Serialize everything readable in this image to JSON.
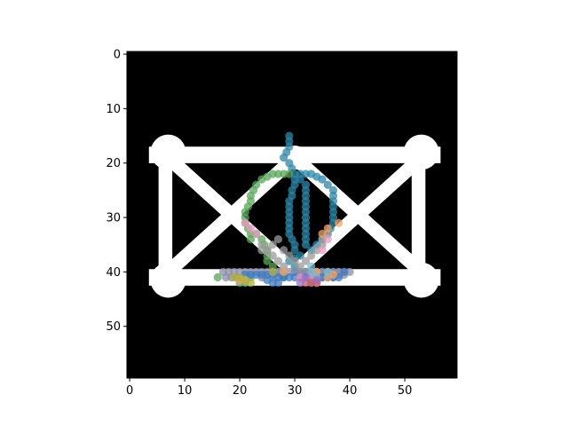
{
  "chart_data": {
    "type": "image_with_scatter_overlay",
    "title": "",
    "xlabel": "",
    "ylabel": "",
    "xlim": [
      -0.5,
      59.5
    ],
    "ylim": [
      59.5,
      -0.5
    ],
    "y_inverted": true,
    "grid": false,
    "xticks": [
      0,
      10,
      20,
      30,
      40,
      50
    ],
    "yticks": [
      0,
      10,
      20,
      30,
      40,
      50
    ],
    "image": {
      "background": "#000000",
      "foreground": "#ffffff",
      "shapes": [
        {
          "kind": "bar",
          "from": [
            5,
            18.5
          ],
          "to": [
            55,
            18.5
          ],
          "width": 3
        },
        {
          "kind": "bar",
          "from": [
            5,
            41
          ],
          "to": [
            55,
            41
          ],
          "width": 3
        },
        {
          "kind": "bar",
          "from": [
            6.5,
            18
          ],
          "to": [
            6.5,
            41
          ],
          "width": 2.5
        },
        {
          "kind": "bar",
          "from": [
            52.5,
            18
          ],
          "to": [
            52.5,
            41
          ],
          "width": 2.5
        },
        {
          "kind": "bar",
          "from": [
            7,
            19
          ],
          "to": [
            30,
            40
          ],
          "width": 2.5
        },
        {
          "kind": "bar",
          "from": [
            30,
            19
          ],
          "to": [
            53,
            40
          ],
          "width": 2.5
        },
        {
          "kind": "bar",
          "from": [
            7,
            40
          ],
          "to": [
            30,
            19
          ],
          "width": 2.5
        },
        {
          "kind": "bar",
          "from": [
            30,
            40
          ],
          "to": [
            53,
            19
          ],
          "width": 2.5
        },
        {
          "kind": "node",
          "center": [
            7,
            18
          ],
          "r": 3.2
        },
        {
          "kind": "node",
          "center": [
            53,
            18
          ],
          "r": 3.2
        },
        {
          "kind": "node",
          "center": [
            7,
            41.5
          ],
          "r": 3.2
        },
        {
          "kind": "node",
          "center": [
            53,
            41.5
          ],
          "r": 3.2
        },
        {
          "kind": "node",
          "center": [
            30,
            19
          ],
          "r": 2.2
        }
      ]
    },
    "series": [
      {
        "color": "#2e86a6",
        "points": [
          [
            29,
            15
          ],
          [
            29,
            16
          ],
          [
            29,
            17
          ],
          [
            28.5,
            18
          ],
          [
            28,
            19
          ],
          [
            29,
            20
          ],
          [
            29.5,
            21
          ],
          [
            30,
            22
          ],
          [
            31,
            22
          ],
          [
            32,
            22
          ],
          [
            33,
            22
          ],
          [
            34,
            22.5
          ],
          [
            35,
            23
          ],
          [
            36,
            24
          ],
          [
            37,
            25
          ],
          [
            37,
            26
          ],
          [
            37,
            27
          ],
          [
            37,
            28
          ],
          [
            37,
            29
          ],
          [
            37,
            30
          ],
          [
            37,
            31
          ],
          [
            36.5,
            32
          ],
          [
            36,
            33
          ],
          [
            35,
            34
          ],
          [
            34,
            35
          ],
          [
            33,
            36
          ],
          [
            31,
            37
          ],
          [
            30,
            37.5
          ],
          [
            29,
            38
          ],
          [
            30,
            36
          ],
          [
            30,
            35
          ],
          [
            29.5,
            34
          ],
          [
            29,
            33
          ],
          [
            29,
            32
          ],
          [
            29,
            31
          ],
          [
            29,
            30
          ],
          [
            29,
            29
          ],
          [
            29,
            28
          ],
          [
            29,
            27
          ],
          [
            29.5,
            26
          ],
          [
            29.5,
            25
          ],
          [
            30,
            24
          ],
          [
            30,
            23
          ],
          [
            31,
            23
          ],
          [
            32,
            24
          ],
          [
            32,
            25
          ],
          [
            32,
            26
          ],
          [
            32,
            27
          ],
          [
            32,
            28
          ],
          [
            32,
            29
          ],
          [
            32,
            30
          ],
          [
            32,
            31
          ],
          [
            32,
            32
          ],
          [
            32,
            33
          ],
          [
            32,
            34
          ],
          [
            32,
            35
          ],
          [
            30,
            39
          ],
          [
            30,
            40
          ],
          [
            31,
            40
          ],
          [
            32,
            40
          ],
          [
            33,
            40
          ],
          [
            34,
            40
          ],
          [
            35,
            40
          ],
          [
            36,
            40
          ],
          [
            37,
            40
          ],
          [
            38,
            40
          ]
        ]
      },
      {
        "color": "#5aa55a",
        "points": [
          [
            22,
            34
          ],
          [
            22,
            33
          ],
          [
            21.5,
            32
          ],
          [
            21,
            31
          ],
          [
            21,
            30
          ],
          [
            21,
            29
          ],
          [
            21.5,
            28
          ],
          [
            22,
            27
          ],
          [
            22,
            26
          ],
          [
            22.5,
            25
          ],
          [
            23,
            24
          ],
          [
            24,
            23
          ],
          [
            25,
            22.5
          ],
          [
            26,
            22
          ],
          [
            27,
            22
          ],
          [
            28,
            22
          ],
          [
            29,
            22
          ],
          [
            23,
            33
          ],
          [
            24,
            34
          ],
          [
            24.5,
            35
          ],
          [
            25,
            36
          ],
          [
            25,
            37
          ],
          [
            25,
            38
          ],
          [
            26,
            39
          ],
          [
            27,
            40
          ],
          [
            27.5,
            40.5
          ],
          [
            28,
            40.5
          ],
          [
            16,
            41
          ],
          [
            20,
            42
          ],
          [
            21,
            42
          ],
          [
            22,
            41
          ],
          [
            28,
            41
          ]
        ]
      },
      {
        "color": "#8c8ca8",
        "points": [
          [
            17,
            40
          ],
          [
            18,
            40
          ],
          [
            19,
            40
          ],
          [
            20,
            40
          ],
          [
            21,
            40
          ],
          [
            22,
            40
          ],
          [
            23,
            40
          ],
          [
            24,
            40
          ],
          [
            25,
            40
          ],
          [
            26,
            40
          ],
          [
            27,
            40
          ],
          [
            28,
            40
          ],
          [
            29,
            40
          ],
          [
            30,
            40
          ],
          [
            31,
            40
          ],
          [
            32,
            40
          ],
          [
            33,
            40
          ],
          [
            34,
            40
          ],
          [
            35,
            40
          ],
          [
            36,
            40
          ],
          [
            37,
            40
          ],
          [
            38,
            40
          ],
          [
            39,
            40
          ],
          [
            40,
            40
          ],
          [
            17.5,
            41
          ],
          [
            18.5,
            41
          ],
          [
            19.5,
            41
          ],
          [
            24,
            41
          ],
          [
            26,
            41
          ],
          [
            31,
            41
          ],
          [
            33,
            41
          ],
          [
            35,
            41
          ],
          [
            36,
            41
          ],
          [
            37,
            41
          ],
          [
            38,
            40.5
          ],
          [
            39,
            40.5
          ]
        ]
      },
      {
        "color": "#3e7ac0",
        "points": [
          [
            21,
            40.5
          ],
          [
            22,
            40.5
          ],
          [
            23,
            40.5
          ],
          [
            24,
            40.5
          ],
          [
            25,
            40.5
          ],
          [
            26,
            40.5
          ],
          [
            27,
            41
          ],
          [
            28,
            41
          ],
          [
            29,
            41
          ],
          [
            30,
            41
          ],
          [
            31,
            41
          ],
          [
            32,
            41
          ],
          [
            33,
            41
          ],
          [
            34,
            41
          ],
          [
            35,
            41
          ],
          [
            36,
            41
          ],
          [
            37,
            41
          ],
          [
            38,
            41
          ],
          [
            39,
            40
          ],
          [
            25,
            41.5
          ],
          [
            26,
            42
          ],
          [
            27,
            42
          ],
          [
            33,
            42
          ]
        ]
      },
      {
        "color": "#9a9a9a",
        "points": [
          [
            24,
            35
          ],
          [
            24,
            36
          ],
          [
            25,
            36
          ],
          [
            26,
            35
          ],
          [
            27,
            34
          ],
          [
            28,
            36
          ],
          [
            29,
            37
          ],
          [
            30,
            38
          ],
          [
            31,
            39
          ],
          [
            32,
            38
          ],
          [
            33,
            37
          ],
          [
            34,
            36
          ],
          [
            35,
            35
          ],
          [
            35,
            34
          ],
          [
            36,
            33
          ],
          [
            26,
            37
          ],
          [
            27,
            38
          ],
          [
            28,
            39
          ]
        ]
      },
      {
        "color": "#f2a46a",
        "points": [
          [
            38,
            31
          ],
          [
            36,
            32
          ],
          [
            35,
            33
          ],
          [
            34,
            40
          ],
          [
            36,
            41
          ],
          [
            37,
            40.5
          ],
          [
            20,
            41.5
          ],
          [
            21,
            41.5
          ],
          [
            28,
            40
          ]
        ]
      },
      {
        "color": "#e89ac4",
        "points": [
          [
            21,
            31
          ],
          [
            22,
            32
          ],
          [
            23,
            33
          ],
          [
            33,
            41
          ],
          [
            34,
            42
          ],
          [
            31,
            41
          ],
          [
            35,
            36
          ],
          [
            36,
            34
          ]
        ]
      },
      {
        "color": "#b0b040",
        "points": [
          [
            19,
            41
          ],
          [
            20,
            41
          ],
          [
            21,
            41.5
          ],
          [
            22,
            42
          ],
          [
            26,
            40
          ]
        ]
      },
      {
        "color": "#7fb8cc",
        "points": [
          [
            33,
            39
          ],
          [
            33,
            40
          ],
          [
            36,
            40
          ],
          [
            34,
            41
          ]
        ]
      },
      {
        "color": "#c86060",
        "points": [
          [
            33,
            42
          ],
          [
            34,
            42
          ],
          [
            32,
            42
          ]
        ]
      },
      {
        "color": "#9c6fc4",
        "points": [
          [
            31,
            42
          ],
          [
            32,
            41
          ],
          [
            34,
            41.5
          ]
        ]
      }
    ]
  }
}
